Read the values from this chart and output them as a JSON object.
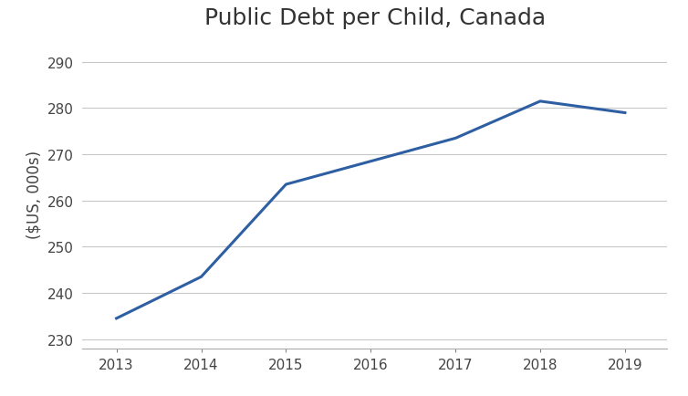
{
  "title": "Public Debt per Child, Canada",
  "xlabel": "",
  "ylabel": "($US, 000s)",
  "years": [
    2013,
    2014,
    2015,
    2016,
    2017,
    2018,
    2019
  ],
  "values": [
    234.5,
    243.5,
    263.5,
    268.5,
    273.5,
    281.5,
    279.0
  ],
  "line_color": "#2E5FA3",
  "line_width": 2.2,
  "ylim": [
    228,
    295
  ],
  "yticks": [
    230,
    240,
    250,
    260,
    270,
    280,
    290
  ],
  "xlim": [
    2012.6,
    2019.5
  ],
  "xticks": [
    2013,
    2014,
    2015,
    2016,
    2017,
    2018,
    2019
  ],
  "grid_color": "#c8c8c8",
  "background_color": "#ffffff",
  "title_fontsize": 18,
  "label_fontsize": 12,
  "tick_fontsize": 11
}
